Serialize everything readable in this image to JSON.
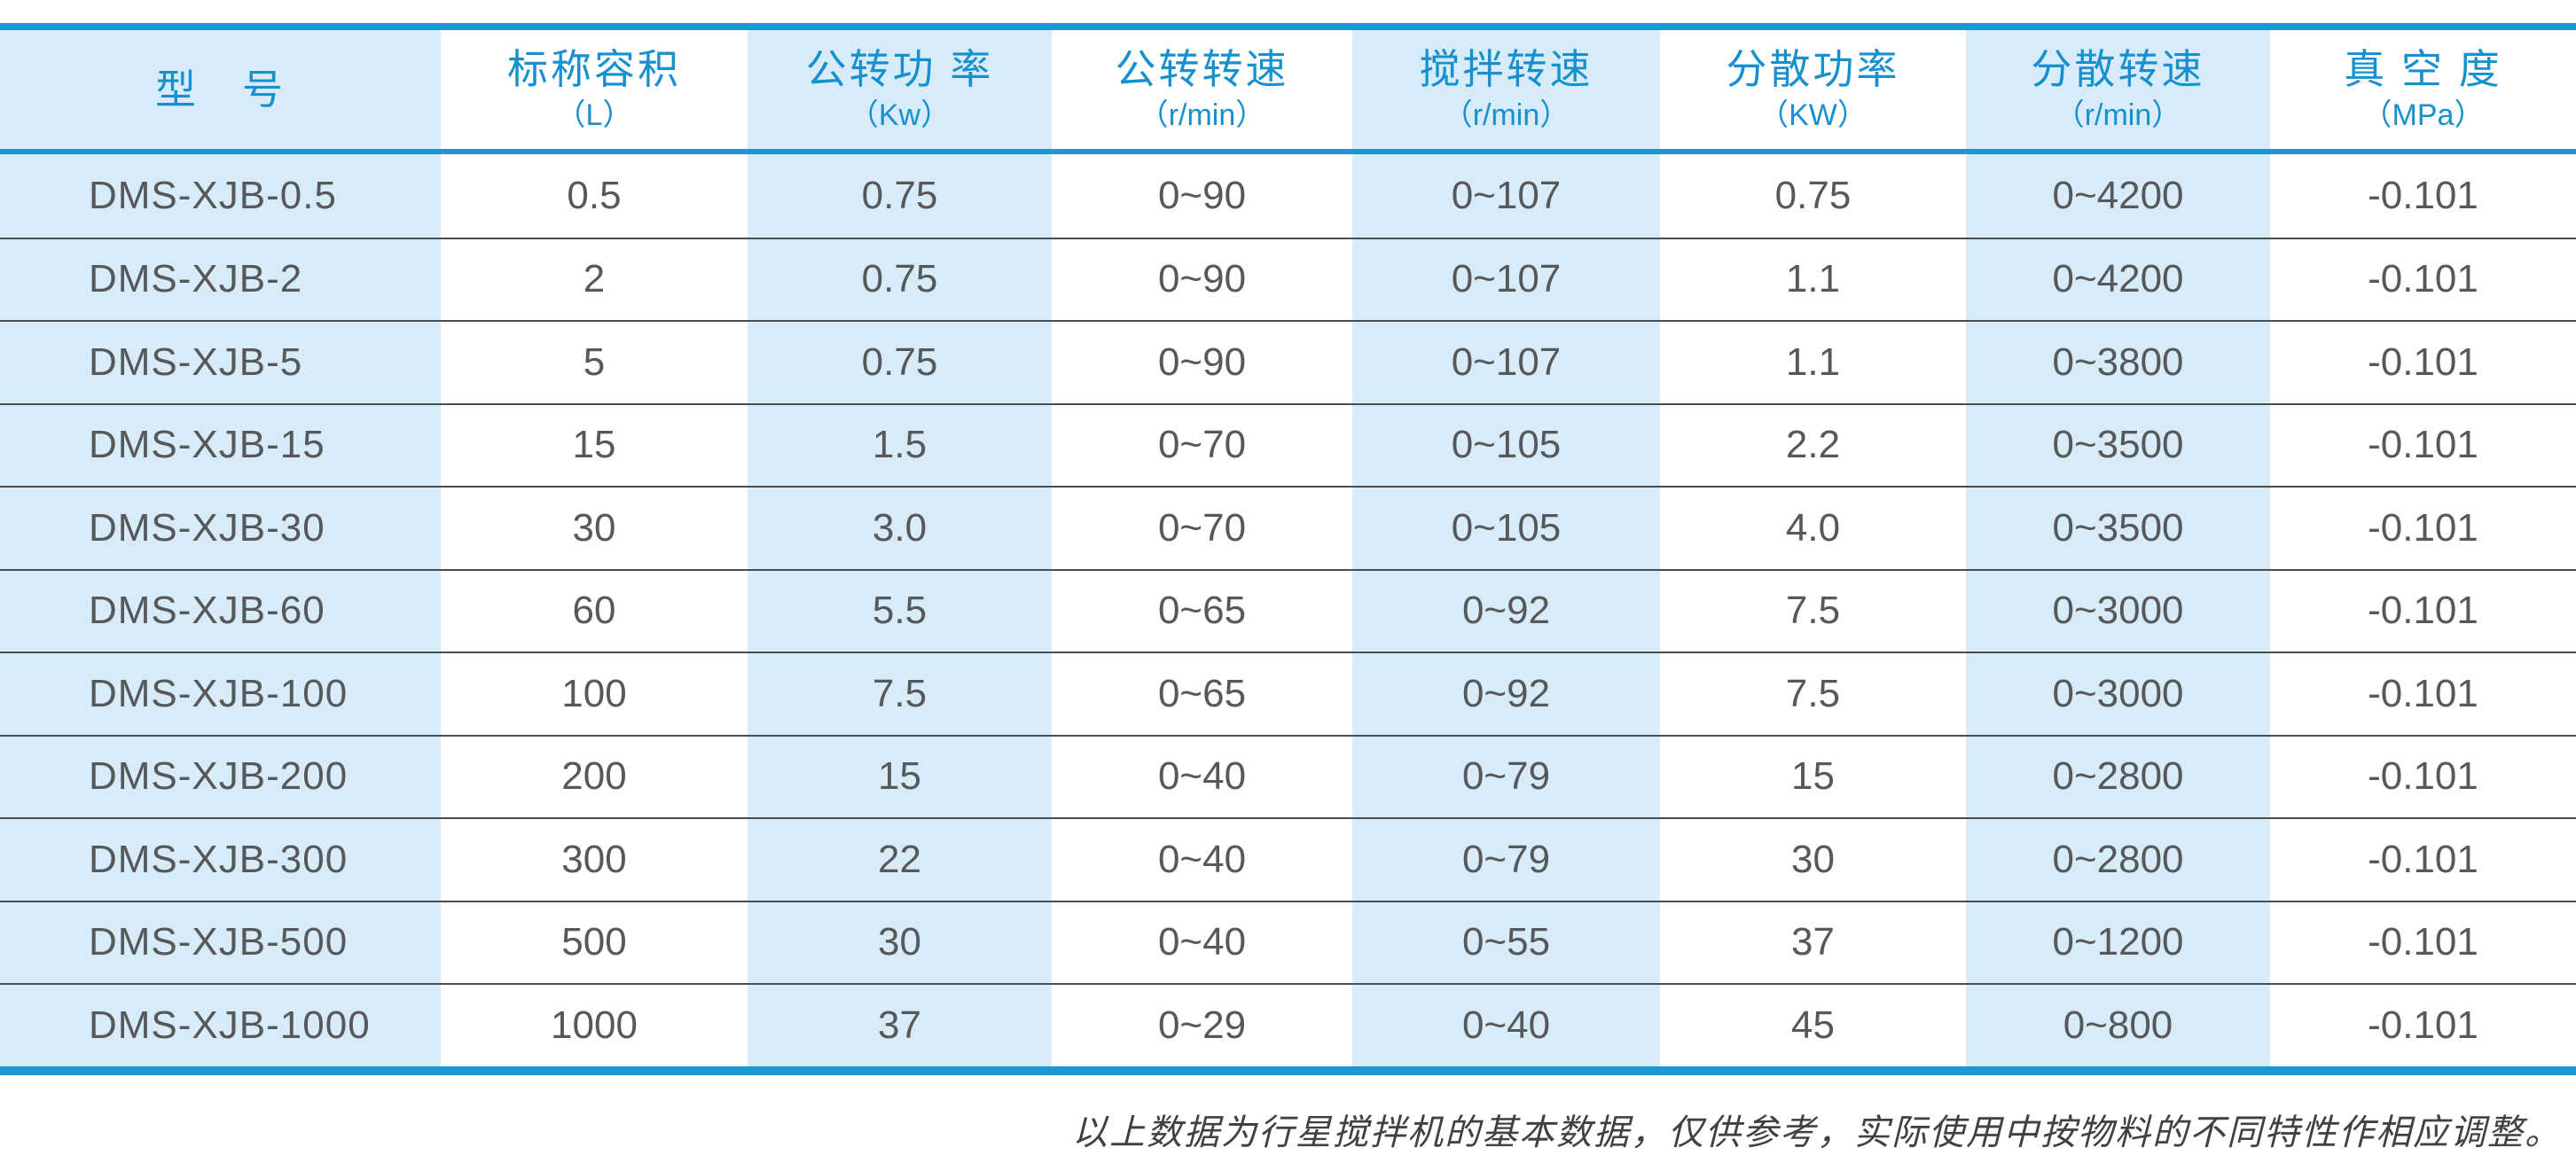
{
  "table": {
    "columns": [
      {
        "label": "型　号",
        "unit": ""
      },
      {
        "label": "标称容积",
        "unit": "（L）"
      },
      {
        "label": "公转功 率",
        "unit": "（Kw）"
      },
      {
        "label": "公转转速",
        "unit": "（r/min）"
      },
      {
        "label": "搅拌转速",
        "unit": "（r/min）"
      },
      {
        "label": "分散功率",
        "unit": "（KW）"
      },
      {
        "label": "分散转速",
        "unit": "（r/min）"
      },
      {
        "label": "真 空 度",
        "unit": "（MPa）"
      }
    ],
    "rows": [
      [
        "DMS-XJB-0.5",
        "0.5",
        "0.75",
        "0~90",
        "0~107",
        "0.75",
        "0~4200",
        "-0.101"
      ],
      [
        "DMS-XJB-2",
        "2",
        "0.75",
        "0~90",
        "0~107",
        "1.1",
        "0~4200",
        "-0.101"
      ],
      [
        "DMS-XJB-5",
        "5",
        "0.75",
        "0~90",
        "0~107",
        "1.1",
        "0~3800",
        "-0.101"
      ],
      [
        "DMS-XJB-15",
        "15",
        "1.5",
        "0~70",
        "0~105",
        "2.2",
        "0~3500",
        "-0.101"
      ],
      [
        "DMS-XJB-30",
        "30",
        "3.0",
        "0~70",
        "0~105",
        "4.0",
        "0~3500",
        "-0.101"
      ],
      [
        "DMS-XJB-60",
        "60",
        "5.5",
        "0~65",
        "0~92",
        "7.5",
        "0~3000",
        "-0.101"
      ],
      [
        "DMS-XJB-100",
        "100",
        "7.5",
        "0~65",
        "0~92",
        "7.5",
        "0~3000",
        "-0.101"
      ],
      [
        "DMS-XJB-200",
        "200",
        "15",
        "0~40",
        "0~79",
        "15",
        "0~2800",
        "-0.101"
      ],
      [
        "DMS-XJB-300",
        "300",
        "22",
        "0~40",
        "0~79",
        "30",
        "0~2800",
        "-0.101"
      ],
      [
        "DMS-XJB-500",
        "500",
        "30",
        "0~40",
        "0~55",
        "37",
        "0~1200",
        "-0.101"
      ],
      [
        "DMS-XJB-1000",
        "1000",
        "37",
        "0~29",
        "0~40",
        "45",
        "0~800",
        "-0.101"
      ]
    ]
  },
  "footer": {
    "note": "以上数据为行星搅拌机的基本数据，仅供参考，实际使用中按物料的不同特性作相应调整。"
  },
  "colors": {
    "accent_blue": "#1b97d3",
    "header_text_blue": "#1790d0",
    "column_tint": "#d8ebf8",
    "body_text": "#57585a",
    "row_separator": "#4b4c4e"
  }
}
